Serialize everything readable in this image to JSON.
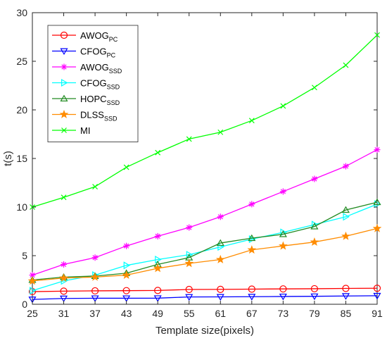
{
  "chart_data": {
    "type": "line",
    "xlabel": "Template size(pixels)",
    "ylabel": "t(s)",
    "x": [
      25,
      31,
      37,
      43,
      49,
      55,
      61,
      67,
      73,
      79,
      85,
      91
    ],
    "xlim": [
      25,
      91
    ],
    "ylim": [
      0,
      30
    ],
    "yticks": [
      0,
      5,
      10,
      15,
      20,
      25,
      30
    ],
    "grid": false,
    "legend_position": "top-left",
    "series": [
      {
        "name": "AWOG",
        "subscript": "PC",
        "color": "#ff0000",
        "marker": "circle",
        "values": [
          1.3,
          1.35,
          1.38,
          1.4,
          1.42,
          1.52,
          1.53,
          1.56,
          1.58,
          1.6,
          1.63,
          1.65
        ]
      },
      {
        "name": "CFOG",
        "subscript": "PC",
        "color": "#0000ff",
        "marker": "triangle-down",
        "values": [
          0.5,
          0.6,
          0.62,
          0.62,
          0.63,
          0.75,
          0.76,
          0.78,
          0.8,
          0.82,
          0.85,
          0.88
        ]
      },
      {
        "name": "AWOG",
        "subscript": "SSD",
        "color": "#ff00ff",
        "marker": "star",
        "values": [
          3.0,
          4.1,
          4.8,
          6.0,
          7.0,
          7.9,
          9.0,
          10.3,
          11.6,
          12.9,
          14.2,
          15.9
        ]
      },
      {
        "name": "CFOG",
        "subscript": "SSD",
        "color": "#00ffff",
        "marker": "triangle-right",
        "values": [
          1.4,
          2.4,
          3.0,
          4.0,
          4.6,
          5.1,
          5.9,
          6.7,
          7.4,
          8.2,
          9.0,
          10.3
        ]
      },
      {
        "name": "HOPC",
        "subscript": "SSD",
        "color": "#228b22",
        "marker": "triangle-up",
        "values": [
          2.5,
          2.8,
          2.9,
          3.2,
          4.1,
          4.8,
          6.3,
          6.8,
          7.2,
          8.0,
          9.7,
          10.5
        ]
      },
      {
        "name": "DLSS",
        "subscript": "SSD",
        "color": "#ff8c00",
        "marker": "pentagram",
        "values": [
          2.4,
          2.7,
          2.8,
          3.0,
          3.7,
          4.2,
          4.6,
          5.6,
          6.0,
          6.4,
          7.0,
          7.8
        ]
      },
      {
        "name": "MI",
        "subscript": "",
        "color": "#00ff00",
        "marker": "x",
        "values": [
          10.0,
          11.0,
          12.1,
          14.1,
          15.6,
          17.0,
          17.7,
          18.9,
          20.4,
          22.3,
          24.6,
          27.7
        ]
      }
    ]
  }
}
